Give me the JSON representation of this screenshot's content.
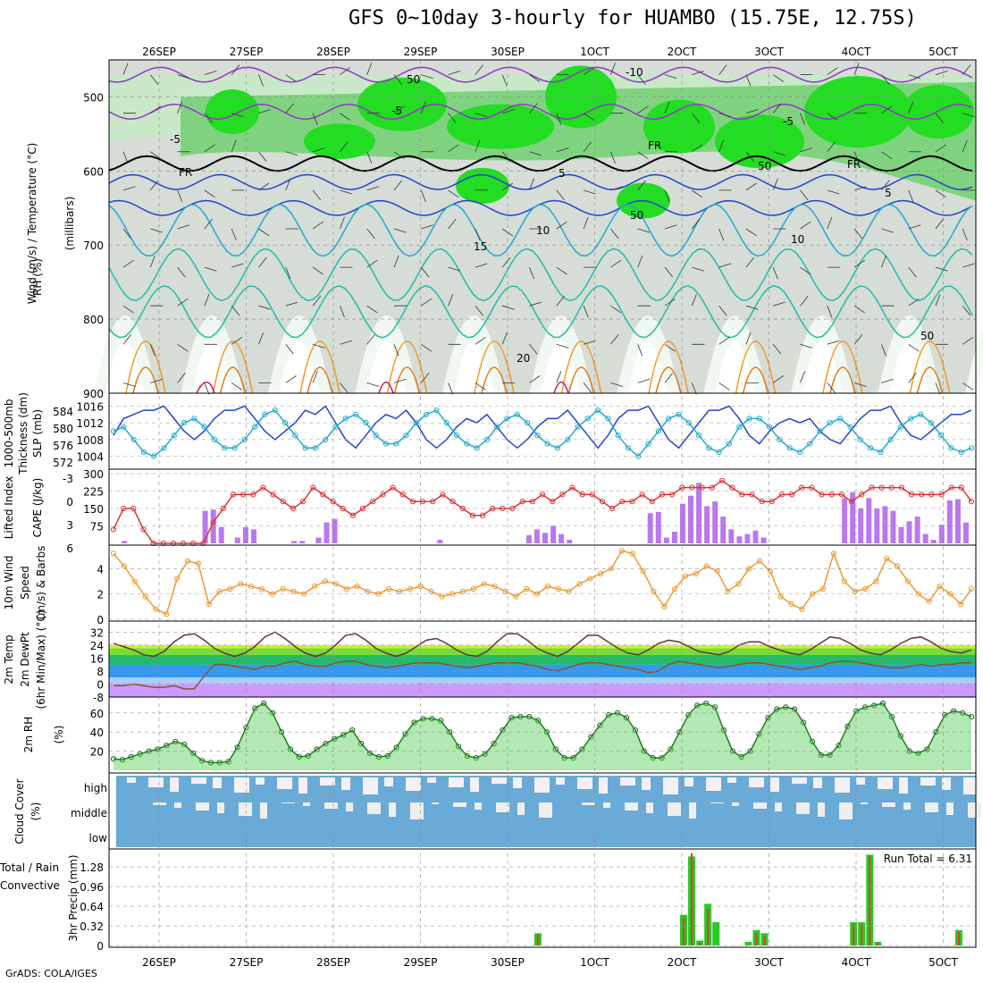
{
  "title": "GFS 0~10day 3-hourly for HUAMBO (15.75E, 12.75S)",
  "footer": "GrADS: COLA/IGES",
  "date_labels": [
    "26SEP",
    "27SEP",
    "28SEP",
    "29SEP",
    "30SEP",
    "1OCT",
    "2OCT",
    "3OCT",
    "4OCT",
    "5OCT"
  ],
  "colors": {
    "green_bright": "#22dd22",
    "green_mid": "#7fd37f",
    "green_light": "#c8e8c8",
    "grey_light": "#d6dcd6",
    "purple": "#9933cc",
    "blue": "#2244cc",
    "cyan": "#22aacc",
    "teal": "#22bbaa",
    "orange": "#ee9922",
    "magenta": "#cc1177",
    "cape_bar": "#bb77ee",
    "lifted": "#dd3333",
    "wind": "#ee9933",
    "cloud": "#6aaad6",
    "precip_total": "#22cc22",
    "precip_conv": "#ee3333"
  },
  "chart_data": [
    {
      "type": "heatmap",
      "name": "upper-air",
      "ylabel": "(millibars)",
      "left_labels": [
        "Wind (m/s)",
        "Temperature (°C)",
        "RH (%)"
      ],
      "y_ticks": [
        500,
        600,
        700,
        800,
        900
      ],
      "ylim": [
        900,
        450
      ],
      "contour_labels": [
        "-10",
        "-5",
        "-5",
        "-5",
        "FR",
        "FR",
        "FR",
        "5",
        "5",
        "10",
        "10",
        "15",
        "20",
        "50",
        "50",
        "50",
        "50"
      ],
      "temp_levels_c": [
        -10,
        -5,
        0,
        5,
        10,
        15,
        20,
        25,
        30
      ]
    },
    {
      "type": "line",
      "name": "thickness-slp",
      "left_labels": [
        "1000-500mb",
        "Thickness (dm)",
        "SLP (mb)"
      ],
      "thickness_ticks": [
        572,
        576,
        580,
        584
      ],
      "slp_ticks": [
        1004,
        1008,
        1012,
        1016
      ],
      "series": [
        {
          "name": "1000-500mb Thickness (dm)",
          "values": [
            1009,
            1013,
            1014,
            1015,
            1015,
            1016,
            1013,
            1010,
            1008,
            1010,
            1013,
            1015,
            1015,
            1016,
            1013,
            1010,
            1008,
            1010,
            1012,
            1015,
            1014,
            1016,
            1012,
            1008,
            1006,
            1009,
            1012,
            1014,
            1013,
            1015,
            1012,
            1008,
            1006,
            1008,
            1011,
            1013,
            1012,
            1014,
            1011,
            1008,
            1006,
            1008,
            1011,
            1013,
            1013,
            1015,
            1012,
            1009,
            1006,
            1009,
            1013,
            1015,
            1015,
            1016,
            1012,
            1008,
            1006,
            1009,
            1012,
            1015,
            1015,
            1016,
            1013,
            1009,
            1007,
            1010,
            1012,
            1013,
            1012,
            1013,
            1010,
            1008,
            1007,
            1010,
            1013,
            1015,
            1015,
            1016,
            1012,
            1009,
            1008,
            1010,
            1012,
            1014,
            1014,
            1015
          ]
        },
        {
          "name": "SLP (mb)",
          "values": [
            1010,
            1011,
            1008,
            1005,
            1004,
            1006,
            1009,
            1012,
            1013,
            1011,
            1008,
            1006,
            1006,
            1008,
            1011,
            1014,
            1015,
            1012,
            1009,
            1006,
            1006,
            1008,
            1011,
            1013,
            1014,
            1012,
            1009,
            1007,
            1007,
            1009,
            1012,
            1014,
            1015,
            1012,
            1009,
            1007,
            1006,
            1008,
            1011,
            1013,
            1014,
            1012,
            1009,
            1007,
            1006,
            1008,
            1011,
            1013,
            1015,
            1013,
            1009,
            1006,
            1004,
            1007,
            1010,
            1013,
            1014,
            1012,
            1009,
            1006,
            1005,
            1007,
            1011,
            1013,
            1013,
            1011,
            1008,
            1006,
            1005,
            1007,
            1010,
            1012,
            1013,
            1011,
            1008,
            1006,
            1005,
            1008,
            1011,
            1013,
            1014,
            1012,
            1009,
            1006,
            1005,
            1006
          ]
        }
      ]
    },
    {
      "type": "bar",
      "name": "lifted-cape",
      "left_labels": [
        "Lifted Index",
        "CAPE (J/kg)"
      ],
      "li_ticks": [
        -3,
        0,
        3,
        6
      ],
      "cape_ticks": [
        75,
        150,
        225,
        300
      ],
      "lifted_index": [
        4,
        1,
        1,
        4,
        6,
        6,
        6,
        6,
        6,
        6,
        3,
        1,
        -1,
        -1,
        -1,
        -2,
        -1,
        0,
        1,
        0,
        -2,
        -1,
        0,
        1,
        2,
        1,
        0,
        -1,
        -2,
        -1,
        0,
        0,
        0,
        -1,
        0,
        1,
        2,
        2,
        1,
        1,
        1,
        0,
        0,
        -1,
        0,
        -1,
        -2,
        -1,
        -1,
        0,
        1,
        0,
        0,
        -1,
        0,
        -1,
        -1,
        -2,
        -2,
        -2,
        -2,
        -3,
        -2,
        -1,
        -1,
        0,
        0,
        -1,
        -1,
        -2,
        -2,
        -1,
        -1,
        -1,
        0,
        -1,
        -2,
        -2,
        -2,
        -2,
        -1,
        -1,
        -1,
        -1,
        -2,
        -2,
        0
      ],
      "cape": [
        0,
        10,
        0,
        0,
        0,
        0,
        0,
        0,
        0,
        0,
        0,
        140,
        145,
        70,
        0,
        25,
        70,
        60,
        0,
        0,
        0,
        0,
        10,
        10,
        0,
        25,
        90,
        105,
        0,
        0,
        0,
        0,
        0,
        0,
        0,
        0,
        0,
        0,
        0,
        0,
        15,
        0,
        0,
        0,
        0,
        0,
        0,
        0,
        0,
        0,
        0,
        35,
        60,
        45,
        75,
        40,
        15,
        0,
        0,
        0,
        0,
        0,
        0,
        0,
        0,
        0,
        130,
        135,
        25,
        50,
        170,
        205,
        260,
        160,
        180,
        115,
        60,
        30,
        40,
        55,
        25,
        0,
        0,
        0,
        0,
        0,
        0,
        0,
        0,
        0,
        195,
        220,
        150,
        195,
        150,
        160,
        140,
        70,
        95,
        115,
        40,
        15,
        80,
        185,
        190,
        90
      ]
    },
    {
      "type": "line",
      "name": "wind-10m",
      "left_labels": [
        "10m Wind",
        "Speed",
        "(m/s) & Barbs"
      ],
      "y_ticks": [
        0,
        2,
        4
      ],
      "ylim": [
        0,
        5.5
      ],
      "series": [
        {
          "name": "10m Wind Speed",
          "values": [
            5.2,
            4.2,
            3.0,
            1.8,
            0.8,
            0.4,
            3.2,
            4.6,
            4.4,
            1.2,
            2.2,
            2.4,
            2.8,
            2.6,
            2.4,
            2.0,
            2.4,
            2.2,
            2.0,
            2.6,
            3.0,
            2.8,
            2.4,
            2.6,
            2.2,
            2.0,
            2.4,
            2.2,
            2.4,
            2.6,
            2.2,
            1.8,
            2.0,
            2.2,
            2.4,
            2.8,
            2.6,
            2.2,
            1.8,
            2.4,
            2.0,
            2.6,
            2.4,
            2.2,
            2.8,
            3.2,
            3.6,
            4.0,
            5.4,
            5.2,
            3.8,
            2.2,
            1.0,
            2.4,
            3.4,
            3.6,
            4.2,
            3.8,
            2.2,
            2.8,
            4.0,
            4.6,
            3.8,
            1.8,
            1.2,
            0.8,
            2.0,
            2.4,
            5.2,
            3.0,
            2.2,
            2.4,
            3.0,
            4.8,
            4.2,
            3.0,
            2.0,
            1.4,
            2.6,
            2.0,
            1.2,
            2.4
          ]
        }
      ]
    },
    {
      "type": "area",
      "name": "temp-dewpoint",
      "left_labels": [
        "2m Temp",
        "2m DewPt",
        "(6hr Min/Max) (°C)"
      ],
      "y_ticks": [
        -8,
        0,
        8,
        16,
        24,
        32
      ],
      "ylim": [
        -8,
        36
      ],
      "series": [
        {
          "name": "2m Temp",
          "values": [
            25,
            23,
            21,
            18,
            17,
            20,
            26,
            30,
            31,
            27,
            22,
            19,
            17,
            19,
            23,
            29,
            32,
            28,
            23,
            19,
            17,
            19,
            24,
            30,
            31,
            27,
            22,
            19,
            17,
            19,
            23,
            27,
            28,
            25,
            21,
            18,
            17,
            20,
            26,
            31,
            31,
            27,
            22,
            19,
            17,
            20,
            25,
            30,
            30,
            26,
            22,
            19,
            18,
            21,
            25,
            27,
            26,
            23,
            20,
            19,
            18,
            20,
            24,
            26,
            26,
            23,
            21,
            19,
            18,
            21,
            25,
            29,
            28,
            25,
            21,
            19,
            18,
            21,
            25,
            28,
            29,
            26,
            22,
            20,
            19,
            21
          ]
        },
        {
          "name": "2m DewPt",
          "values": [
            -1,
            -1,
            0,
            -1,
            -2,
            -2,
            -1,
            -3,
            -3,
            5,
            12,
            12,
            11,
            10,
            9,
            11,
            11,
            13,
            14,
            12,
            11,
            11,
            13,
            14,
            14,
            12,
            11,
            10,
            11,
            12,
            13,
            13,
            13,
            12,
            11,
            10,
            11,
            12,
            13,
            13,
            13,
            12,
            11,
            9,
            8,
            10,
            12,
            13,
            13,
            12,
            11,
            10,
            9,
            7,
            8,
            12,
            14,
            13,
            12,
            11,
            10,
            11,
            12,
            13,
            13,
            12,
            11,
            10,
            9,
            10,
            11,
            13,
            14,
            14,
            13,
            12,
            11,
            10,
            10,
            11,
            12,
            11,
            12,
            12,
            13,
            13
          ]
        }
      ]
    },
    {
      "type": "area",
      "name": "rh-2m",
      "left_labels": [
        "2m RH",
        "(%)"
      ],
      "y_ticks": [
        20,
        40,
        60
      ],
      "ylim": [
        0,
        72
      ],
      "series": [
        {
          "name": "2m RH",
          "values": [
            12,
            11,
            14,
            17,
            20,
            22,
            26,
            30,
            27,
            18,
            10,
            8,
            8,
            9,
            24,
            45,
            65,
            70,
            60,
            40,
            22,
            14,
            15,
            22,
            28,
            33,
            37,
            42,
            28,
            18,
            14,
            15,
            24,
            38,
            50,
            54,
            54,
            52,
            40,
            25,
            15,
            13,
            17,
            28,
            42,
            55,
            56,
            56,
            52,
            40,
            22,
            13,
            13,
            22,
            35,
            47,
            58,
            60,
            55,
            42,
            20,
            13,
            13,
            22,
            40,
            58,
            68,
            70,
            66,
            42,
            20,
            14,
            20,
            38,
            55,
            64,
            66,
            64,
            50,
            30,
            16,
            16,
            26,
            46,
            62,
            66,
            68,
            70,
            56,
            36,
            20,
            18,
            22,
            40,
            58,
            62,
            60,
            56
          ]
        }
      ]
    },
    {
      "type": "heatmap",
      "name": "cloud-cover",
      "left_labels": [
        "Cloud Cover",
        "(%)"
      ],
      "rows": [
        "high",
        "middle",
        "low"
      ]
    },
    {
      "type": "bar",
      "name": "precip",
      "left_labels": [
        "Total / Rain",
        "Convective",
        "3hr Precip (mm)"
      ],
      "y_ticks": [
        0,
        0.32,
        0.64,
        0.96,
        1.28
      ],
      "ylim": [
        0,
        1.5
      ],
      "run_total_label": "Run Total = 6.31",
      "total": [
        0,
        0,
        0,
        0,
        0,
        0,
        0,
        0,
        0,
        0,
        0,
        0,
        0,
        0,
        0,
        0,
        0,
        0,
        0,
        0,
        0,
        0,
        0,
        0,
        0,
        0,
        0,
        0,
        0,
        0,
        0,
        0,
        0,
        0,
        0,
        0,
        0,
        0,
        0,
        0,
        0,
        0,
        0,
        0,
        0,
        0,
        0,
        0,
        0,
        0,
        0,
        0,
        0.2,
        0,
        0,
        0,
        0,
        0,
        0,
        0,
        0,
        0,
        0,
        0,
        0,
        0,
        0,
        0,
        0,
        0,
        0.5,
        1.45,
        0.08,
        0.68,
        0.38,
        0,
        0,
        0,
        0.06,
        0.25,
        0.2,
        0,
        0,
        0,
        0,
        0,
        0,
        0,
        0,
        0,
        0,
        0.38,
        0.38,
        1.48,
        0.06,
        0,
        0,
        0,
        0,
        0,
        0,
        0,
        0,
        0,
        0.25,
        0
      ],
      "convective": [
        0,
        0,
        0,
        0,
        0,
        0,
        0,
        0,
        0,
        0,
        0,
        0,
        0,
        0,
        0,
        0,
        0,
        0,
        0,
        0,
        0,
        0,
        0,
        0,
        0,
        0,
        0,
        0,
        0,
        0,
        0,
        0,
        0,
        0,
        0,
        0,
        0,
        0,
        0,
        0,
        0,
        0,
        0,
        0,
        0,
        0,
        0,
        0,
        0,
        0,
        0,
        0,
        0.18,
        0,
        0,
        0,
        0,
        0,
        0,
        0,
        0,
        0,
        0,
        0,
        0,
        0,
        0,
        0,
        0,
        0,
        0.45,
        1.5,
        0.05,
        0.6,
        0,
        0,
        0,
        0,
        0,
        0.2,
        0.15,
        0,
        0,
        0,
        0,
        0,
        0,
        0,
        0,
        0,
        0,
        0.35,
        0.35,
        1.45,
        0.04,
        0,
        0,
        0,
        0,
        0,
        0,
        0,
        0,
        0,
        0.22,
        0
      ]
    }
  ]
}
